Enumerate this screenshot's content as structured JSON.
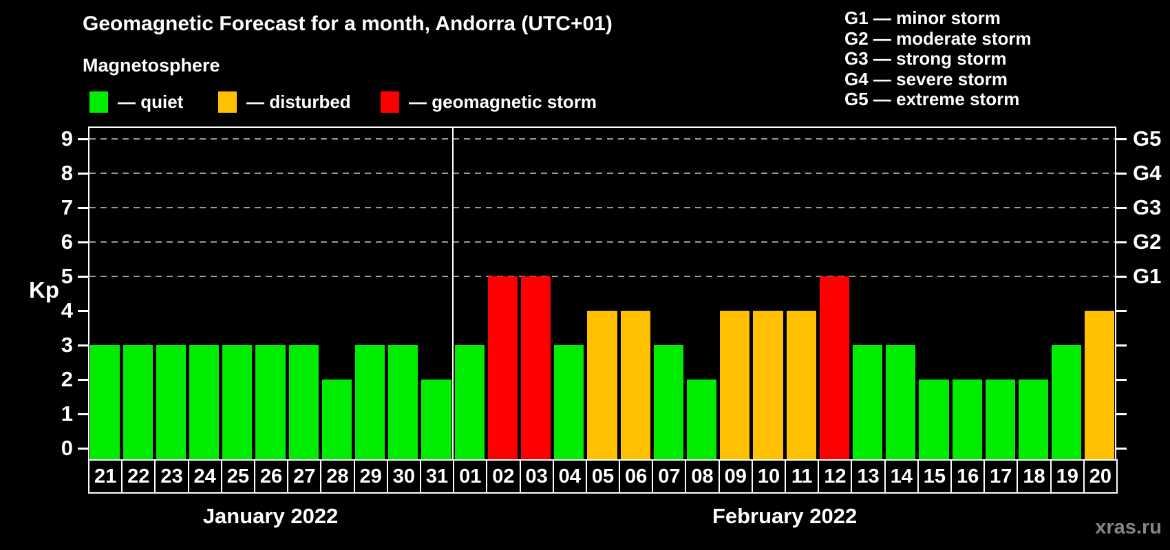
{
  "title": "Geomagnetic Forecast for a month, Andorra (UTC+01)",
  "subtitle": "Magnetosphere",
  "watermark": "xras.ru",
  "colors": {
    "background": "#000000",
    "axis": "#ffffff",
    "gridline": "#999999",
    "watermark_text": "#858585",
    "quiet": "#00ec00",
    "disturbed": "#ffc000",
    "storm": "#ff0000"
  },
  "legend": {
    "items": [
      {
        "key": "quiet",
        "label": "— quiet"
      },
      {
        "key": "disturbed",
        "label": "— disturbed"
      },
      {
        "key": "storm",
        "label": "— geomagnetic storm"
      }
    ]
  },
  "storm_scale": [
    {
      "code": "G1",
      "label": "G1 — minor storm",
      "kp": 5
    },
    {
      "code": "G2",
      "label": "G2 — moderate storm",
      "kp": 6
    },
    {
      "code": "G3",
      "label": "G3 — strong storm",
      "kp": 7
    },
    {
      "code": "G4",
      "label": "G4 — severe storm",
      "kp": 8
    },
    {
      "code": "G5",
      "label": "G5 — extreme storm",
      "kp": 9
    }
  ],
  "chart_data": {
    "type": "bar",
    "title": "Geomagnetic Forecast for a month, Andorra (UTC+01)",
    "xlabel": "",
    "ylabel": "Kp",
    "ylim": [
      0,
      9
    ],
    "y_ticks": [
      0,
      1,
      2,
      3,
      4,
      5,
      6,
      7,
      8,
      9
    ],
    "gridlines_at_kp": [
      5,
      6,
      7,
      8,
      9
    ],
    "grid": "dashed horizontal lines at Kp 5..9 only",
    "legend_position": "top",
    "right_axis": [
      {
        "kp": 5,
        "label": "G1"
      },
      {
        "kp": 6,
        "label": "G2"
      },
      {
        "kp": 7,
        "label": "G3"
      },
      {
        "kp": 8,
        "label": "G4"
      },
      {
        "kp": 9,
        "label": "G5"
      }
    ],
    "groups": [
      {
        "label": "January 2022",
        "categories": [
          "21",
          "22",
          "23",
          "24",
          "25",
          "26",
          "27",
          "28",
          "29",
          "30",
          "31"
        ],
        "values": [
          3,
          3,
          3,
          3,
          3,
          3,
          3,
          2,
          3,
          3,
          2
        ],
        "statuses": [
          "quiet",
          "quiet",
          "quiet",
          "quiet",
          "quiet",
          "quiet",
          "quiet",
          "quiet",
          "quiet",
          "quiet",
          "quiet"
        ]
      },
      {
        "label": "February 2022",
        "categories": [
          "01",
          "02",
          "03",
          "04",
          "05",
          "06",
          "07",
          "08",
          "09",
          "10",
          "11",
          "12",
          "13",
          "14",
          "15",
          "16",
          "17",
          "18",
          "19",
          "20"
        ],
        "values": [
          3,
          5,
          5,
          3,
          4,
          4,
          3,
          2,
          4,
          4,
          4,
          5,
          3,
          3,
          2,
          2,
          2,
          2,
          3,
          4
        ],
        "statuses": [
          "quiet",
          "storm",
          "storm",
          "quiet",
          "disturbed",
          "disturbed",
          "quiet",
          "quiet",
          "disturbed",
          "disturbed",
          "disturbed",
          "storm",
          "quiet",
          "quiet",
          "quiet",
          "quiet",
          "quiet",
          "quiet",
          "quiet",
          "disturbed"
        ]
      }
    ]
  }
}
